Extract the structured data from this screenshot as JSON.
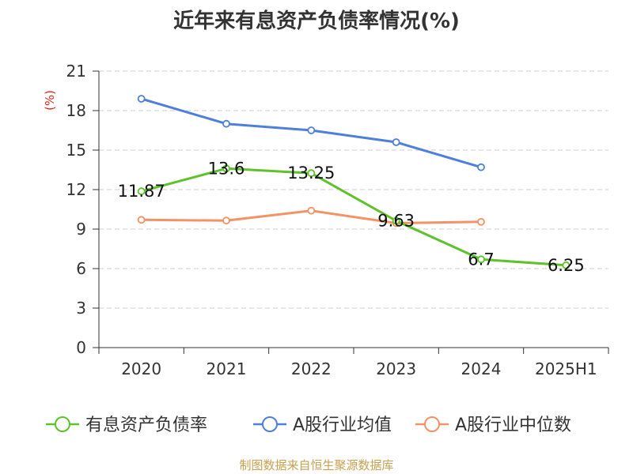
{
  "chart_data": {
    "type": "line",
    "title": "近年来有息资产负债率情况(%)",
    "ylabel": "(%)",
    "xlabel": "",
    "categories": [
      "2020",
      "2021",
      "2022",
      "2023",
      "2024",
      "2025H1"
    ],
    "ylim": [
      0,
      21
    ],
    "yticks": [
      0,
      3,
      6,
      9,
      12,
      15,
      18,
      21
    ],
    "grid": true,
    "legend_position": "bottom",
    "series": [
      {
        "name": "有息资产负债率",
        "color": "#5ec22a",
        "values": [
          11.87,
          13.6,
          13.25,
          9.63,
          6.7,
          6.25
        ],
        "labels": [
          "11.87",
          "13.6",
          "13.25",
          "9.63",
          "6.7",
          "6.25"
        ]
      },
      {
        "name": "A股行业均值",
        "color": "#4e7fdb",
        "values": [
          18.9,
          17.0,
          16.5,
          15.6,
          13.7,
          null
        ]
      },
      {
        "name": "A股行业中位数",
        "color": "#f39265",
        "values": [
          9.7,
          9.65,
          10.4,
          9.45,
          9.55,
          null
        ]
      }
    ]
  },
  "footer": {
    "source": "制图数据来自恒生聚源数据库"
  }
}
